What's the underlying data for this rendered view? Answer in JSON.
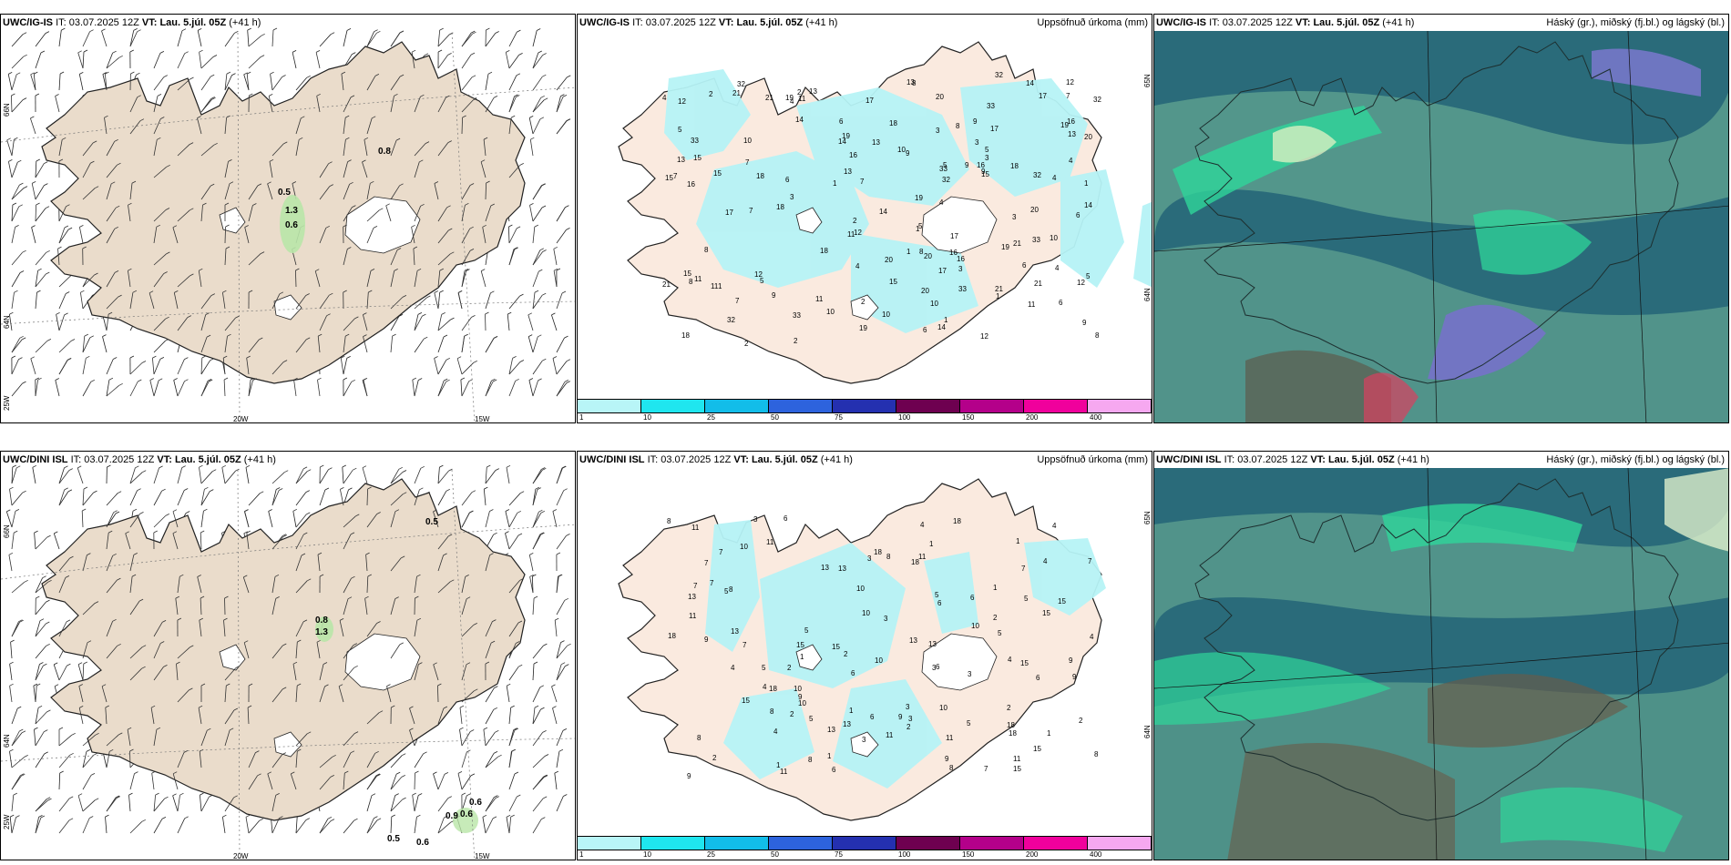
{
  "rows": [
    {
      "model_title": "UWC/IG-IS",
      "it_label": "IT:",
      "it_value": "03.07.2025 12Z",
      "vt_label": "VT:",
      "vt_value": "Lau. 5.júl. 05Z",
      "lead": "(+41 h)",
      "wind_panel": {
        "lon_labels": [
          "20W",
          "15W"
        ],
        "lat_labels": [
          "66N",
          "64N",
          "25W"
        ],
        "values": [
          "0.8",
          "0.5",
          "1.3",
          "0.6"
        ]
      },
      "precip_panel": {
        "title": "Uppsöfnuð úrkoma (mm)",
        "lat_labels": [
          "65N",
          "64N"
        ],
        "values": [
          "1",
          "4",
          "5",
          "7",
          "18",
          "10",
          "6",
          "3",
          "12",
          "9",
          "11",
          "13",
          "2",
          "8",
          "15",
          "14",
          "16",
          "17",
          "19",
          "32",
          "21",
          "20",
          "33"
        ]
      },
      "cloud_panel": {
        "title": "Háský (gr.), miðský (fj.bl.) og lágský (bl.)"
      }
    },
    {
      "model_title": "UWC/DINI ISL",
      "it_label": "IT:",
      "it_value": "03.07.2025 12Z",
      "vt_label": "VT:",
      "vt_value": "Lau. 5.júl. 05Z",
      "lead": "(+41 h)",
      "wind_panel": {
        "lon_labels": [
          "20W",
          "15W"
        ],
        "lat_labels": [
          "66N",
          "64N",
          "25W"
        ],
        "values": [
          "0.5",
          "0.8",
          "1.3",
          "0.6",
          "0.9",
          "0.6",
          "0.5",
          "0.6"
        ]
      },
      "precip_panel": {
        "title": "Uppsöfnuð úrkoma (mm)",
        "lat_labels": [
          "65N",
          "64N"
        ],
        "values": [
          "1",
          "2",
          "3",
          "4",
          "5",
          "6",
          "7",
          "8",
          "10",
          "11",
          "13",
          "15",
          "18",
          "9"
        ]
      },
      "cloud_panel": {
        "title": "Háský (gr.), miðský (fj.bl.) og lágský (bl.)"
      }
    }
  ],
  "legend": {
    "ticks": [
      "1",
      "10",
      "25",
      "50",
      "75",
      "100",
      "150",
      "200",
      "400"
    ],
    "colors": [
      "#b8f5f7",
      "#1fe6ef",
      "#12bde9",
      "#2d63dd",
      "#2430b0",
      "#6e0050",
      "#b4008a",
      "#f0009c",
      "#f6a8f0"
    ]
  },
  "colors": {
    "land": "#eadccb",
    "land_precip": "#faeadf",
    "precip_light": "#b6f3f6",
    "cloud_deep": "#2a6b7a",
    "cloud_mid": "#5b9e8e",
    "cloud_green": "#2fd69a"
  }
}
